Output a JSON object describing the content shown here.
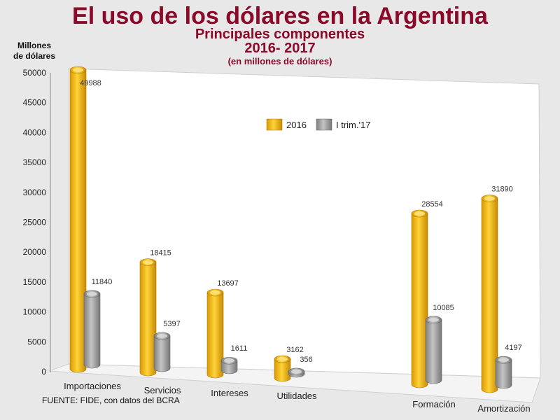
{
  "header": {
    "title": "El uso de los dólares en la Argentina",
    "subtitle": "Principales componentes",
    "period": "2016- 2017",
    "units": "(en millones de dólares)"
  },
  "axis": {
    "ylabel_line1": "Millones",
    "ylabel_line2": "de dólares"
  },
  "source": "FUENTE: FIDE, con datos del  BCRA",
  "colors": {
    "s2016": "#f2b705",
    "s2017": "#9a9a9a"
  },
  "chart_data": {
    "type": "bar",
    "title": "El uso de los dólares en la Argentina",
    "ylabel": "Millones de dólares",
    "ylim": [
      0,
      50000
    ],
    "yticks": [
      0,
      5000,
      10000,
      15000,
      20000,
      25000,
      30000,
      35000,
      40000,
      45000,
      50000
    ],
    "categories": [
      "Importaciones",
      "Servicios",
      "Intereses",
      "Utilidades",
      "Formación",
      "Amortización"
    ],
    "series": [
      {
        "name": "2016",
        "values": [
          49988,
          18415,
          13697,
          3162,
          28554,
          31890
        ]
      },
      {
        "name": "I trim.'17",
        "values": [
          11840,
          5397,
          1611,
          356,
          10085,
          4197
        ]
      }
    ],
    "legend": "top-center",
    "grid": false
  }
}
